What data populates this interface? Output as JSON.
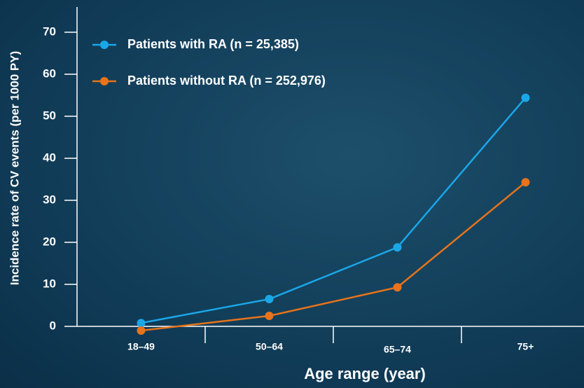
{
  "chart_data": {
    "type": "line",
    "x_label": "Age range (year)",
    "y_label": "Incidence rate of CV events (per 1000 PY)",
    "categories": [
      "18–49",
      "50–64",
      "65–74",
      "75+"
    ],
    "series": [
      {
        "name": "Patients with RA (n = 25,385)",
        "color": "#1aa7e8",
        "values": [
          0.8,
          6.5,
          18.8,
          54.4
        ]
      },
      {
        "name": "Patients without RA (n = 252,976)",
        "color": "#e8731a",
        "values": [
          -1.0,
          2.5,
          9.3,
          34.3
        ]
      }
    ],
    "ylim": [
      0,
      76
    ],
    "yticks": [
      0,
      10,
      20,
      30,
      40,
      50,
      60,
      70
    ]
  }
}
